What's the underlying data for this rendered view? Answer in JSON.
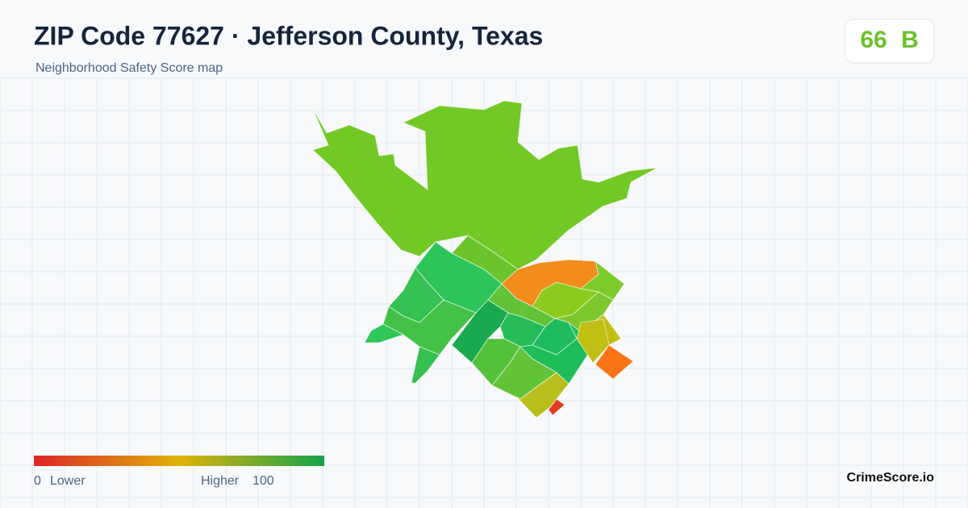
{
  "header": {
    "title": "ZIP Code 77627 · Jefferson County, Texas",
    "subtitle": "Neighborhood Safety Score map"
  },
  "score": {
    "value": "66",
    "grade": "B"
  },
  "legend": {
    "min": "0",
    "min_label": "Lower",
    "max_label": "Higher",
    "max": "100"
  },
  "brand": "CrimeScore.io"
}
